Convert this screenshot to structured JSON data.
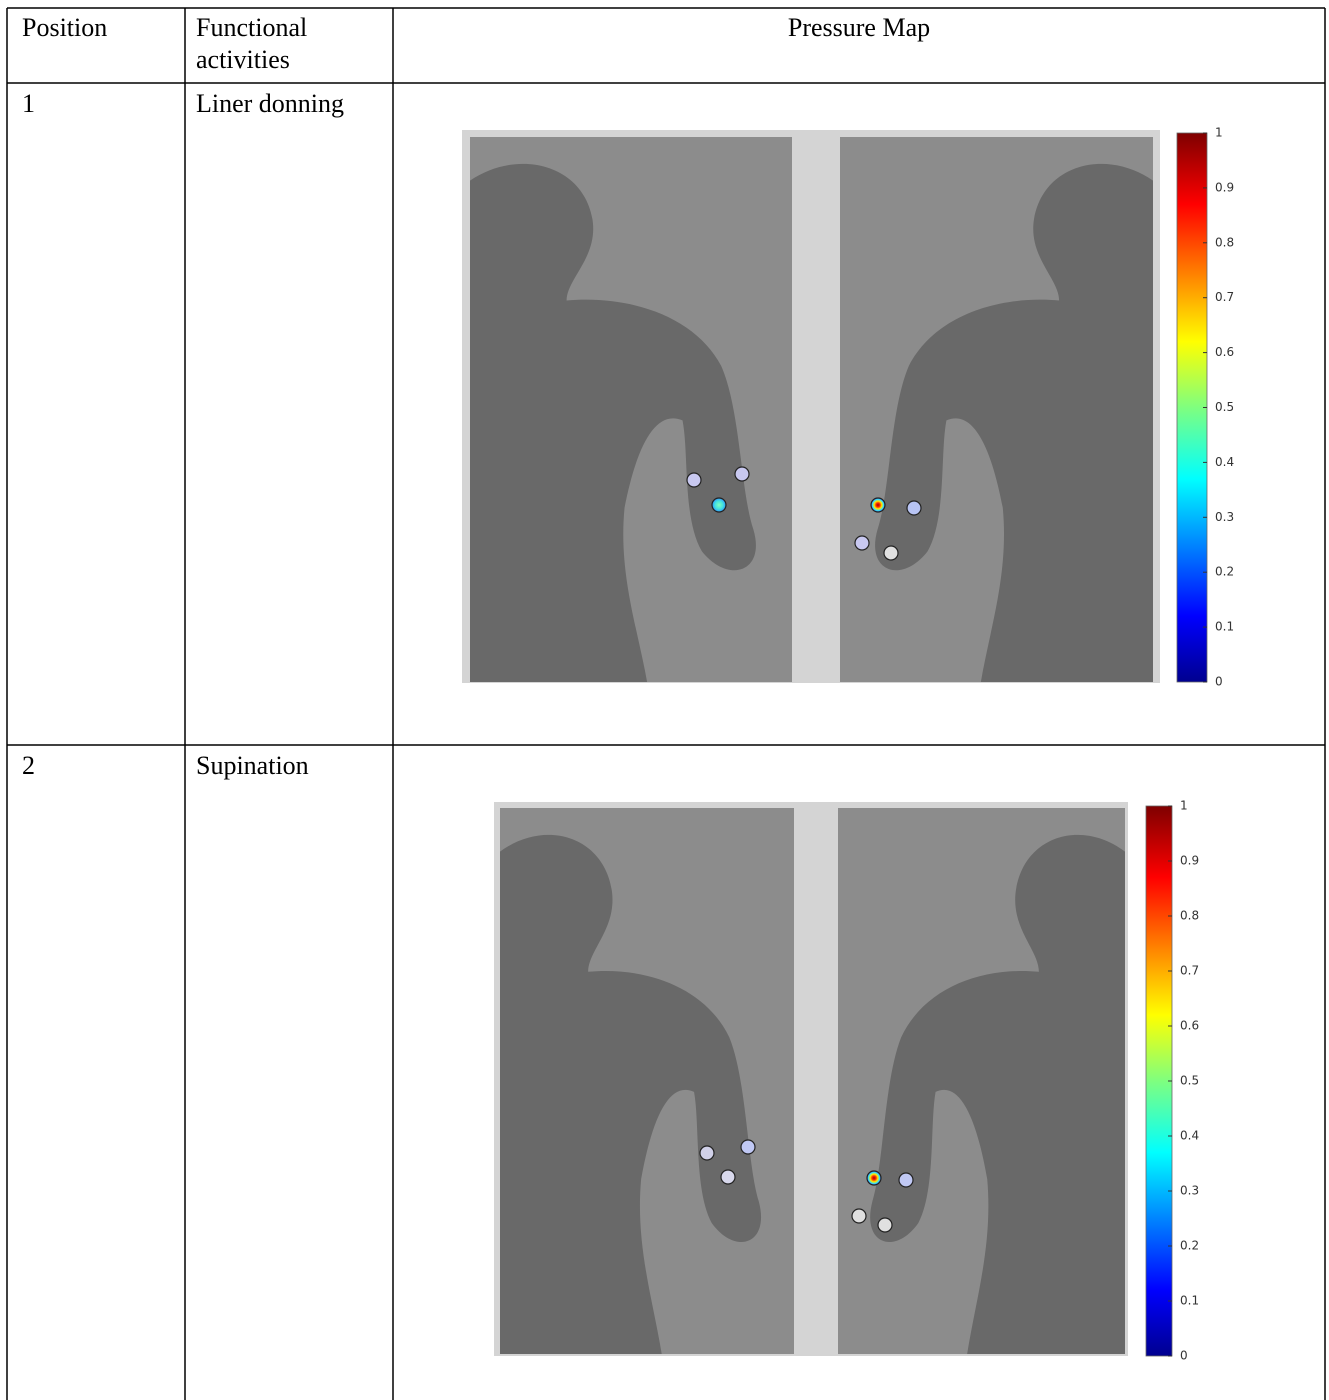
{
  "table": {
    "header": [
      "Position",
      "Functional activities",
      "Pressure Map"
    ],
    "rows": [
      {
        "position": "1",
        "activity": "Liner donning",
        "colorbar_ticks": [
          0,
          0.1,
          0.2,
          0.3,
          0.4,
          0.5,
          0.6,
          0.7,
          0.8,
          0.9,
          1
        ]
      },
      {
        "position": "2",
        "activity": "Supination",
        "colorbar_ticks": [
          0,
          0.1,
          0.2,
          0.3,
          0.4,
          0.5,
          0.6,
          0.7,
          0.8,
          0.9,
          1
        ]
      }
    ]
  }
}
